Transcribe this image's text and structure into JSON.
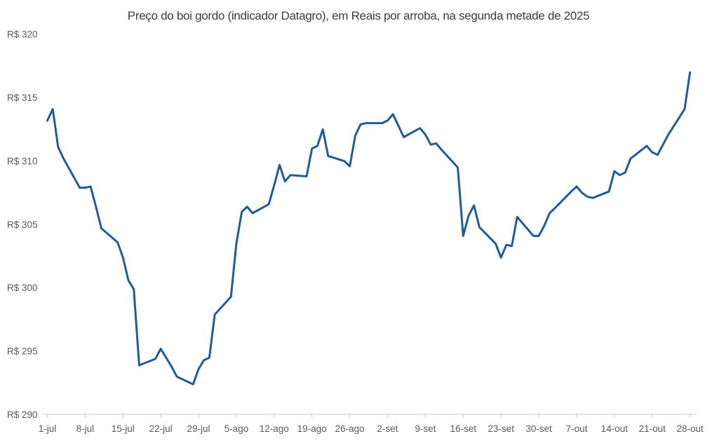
{
  "chart_data": {
    "type": "line",
    "title": "Preço do boi gordo (indicador Datagro), em Reais por arroba, na segunda metade de 2025",
    "xlabel": "",
    "ylabel": "",
    "currency_prefix": "R$",
    "ylim": [
      290,
      320
    ],
    "grid": false,
    "legend": "none",
    "line_color": "#1f5c99",
    "axis_color": "#c9c9c9",
    "tick_label_color": "#595959",
    "title_color": "#3b3b3b",
    "y_ticks": [
      320,
      315,
      310,
      305,
      300,
      295,
      290
    ],
    "y_tick_labels": [
      "R$ 320",
      "R$ 315",
      "R$ 310",
      "R$ 305",
      "R$ 300",
      "R$ 295",
      "R$ 290"
    ],
    "x_ticks": [
      {
        "date": "2025-07-01",
        "label": "1-jul"
      },
      {
        "date": "2025-07-08",
        "label": "8-jul"
      },
      {
        "date": "2025-07-15",
        "label": "15-jul"
      },
      {
        "date": "2025-07-22",
        "label": "22-jul"
      },
      {
        "date": "2025-07-29",
        "label": "29-jul"
      },
      {
        "date": "2025-08-05",
        "label": "5-ago"
      },
      {
        "date": "2025-08-12",
        "label": "12-ago"
      },
      {
        "date": "2025-08-19",
        "label": "19-ago"
      },
      {
        "date": "2025-08-26",
        "label": "26-ago"
      },
      {
        "date": "2025-09-02",
        "label": "2-set"
      },
      {
        "date": "2025-09-09",
        "label": "9-set"
      },
      {
        "date": "2025-09-16",
        "label": "16-set"
      },
      {
        "date": "2025-09-23",
        "label": "23-set"
      },
      {
        "date": "2025-09-30",
        "label": "30-set"
      },
      {
        "date": "2025-10-07",
        "label": "7-out"
      },
      {
        "date": "2025-10-14",
        "label": "14-out"
      },
      {
        "date": "2025-10-21",
        "label": "21-out"
      },
      {
        "date": "2025-10-28",
        "label": "28-out"
      }
    ],
    "series_name": "Preço do boi gordo (R$/arroba)",
    "x": [
      "2025-07-01",
      "2025-07-02",
      "2025-07-03",
      "2025-07-04",
      "2025-07-07",
      "2025-07-08",
      "2025-07-09",
      "2025-07-10",
      "2025-07-11",
      "2025-07-14",
      "2025-07-15",
      "2025-07-16",
      "2025-07-17",
      "2025-07-18",
      "2025-07-21",
      "2025-07-22",
      "2025-07-23",
      "2025-07-24",
      "2025-07-25",
      "2025-07-28",
      "2025-07-29",
      "2025-07-30",
      "2025-07-31",
      "2025-08-01",
      "2025-08-04",
      "2025-08-05",
      "2025-08-06",
      "2025-08-07",
      "2025-08-08",
      "2025-08-11",
      "2025-08-12",
      "2025-08-13",
      "2025-08-14",
      "2025-08-15",
      "2025-08-18",
      "2025-08-19",
      "2025-08-20",
      "2025-08-21",
      "2025-08-22",
      "2025-08-25",
      "2025-08-26",
      "2025-08-27",
      "2025-08-28",
      "2025-08-29",
      "2025-09-01",
      "2025-09-02",
      "2025-09-03",
      "2025-09-04",
      "2025-09-05",
      "2025-09-08",
      "2025-09-09",
      "2025-09-10",
      "2025-09-11",
      "2025-09-12",
      "2025-09-15",
      "2025-09-16",
      "2025-09-17",
      "2025-09-18",
      "2025-09-19",
      "2025-09-22",
      "2025-09-23",
      "2025-09-24",
      "2025-09-25",
      "2025-09-26",
      "2025-09-29",
      "2025-09-30",
      "2025-10-01",
      "2025-10-02",
      "2025-10-03",
      "2025-10-06",
      "2025-10-07",
      "2025-10-08",
      "2025-10-09",
      "2025-10-10",
      "2025-10-13",
      "2025-10-14",
      "2025-10-15",
      "2025-10-16",
      "2025-10-17",
      "2025-10-20",
      "2025-10-21",
      "2025-10-22",
      "2025-10-23",
      "2025-10-24",
      "2025-10-27",
      "2025-10-28"
    ],
    "values": [
      313.2,
      314.1,
      311.1,
      310.2,
      307.9,
      307.9,
      308.0,
      306.4,
      304.7,
      303.6,
      302.4,
      300.6,
      299.9,
      293.9,
      294.4,
      295.2,
      294.5,
      293.8,
      293.0,
      292.4,
      293.6,
      294.3,
      294.5,
      297.9,
      299.3,
      303.5,
      306.0,
      306.4,
      305.9,
      306.6,
      308.1,
      309.7,
      308.4,
      308.9,
      308.8,
      311.0,
      311.2,
      312.5,
      310.4,
      310.0,
      309.6,
      312.0,
      312.9,
      313.0,
      313.0,
      313.2,
      313.7,
      312.8,
      311.9,
      312.6,
      312.1,
      311.3,
      311.4,
      310.9,
      309.5,
      304.1,
      305.7,
      306.5,
      304.8,
      303.5,
      302.4,
      303.4,
      303.3,
      305.6,
      304.1,
      304.1,
      304.9,
      305.9,
      306.3,
      307.6,
      308.0,
      307.5,
      307.2,
      307.1,
      307.6,
      309.2,
      308.9,
      309.1,
      310.2,
      311.2,
      310.7,
      310.5,
      311.3,
      312.1,
      314.1,
      317.0
    ]
  }
}
